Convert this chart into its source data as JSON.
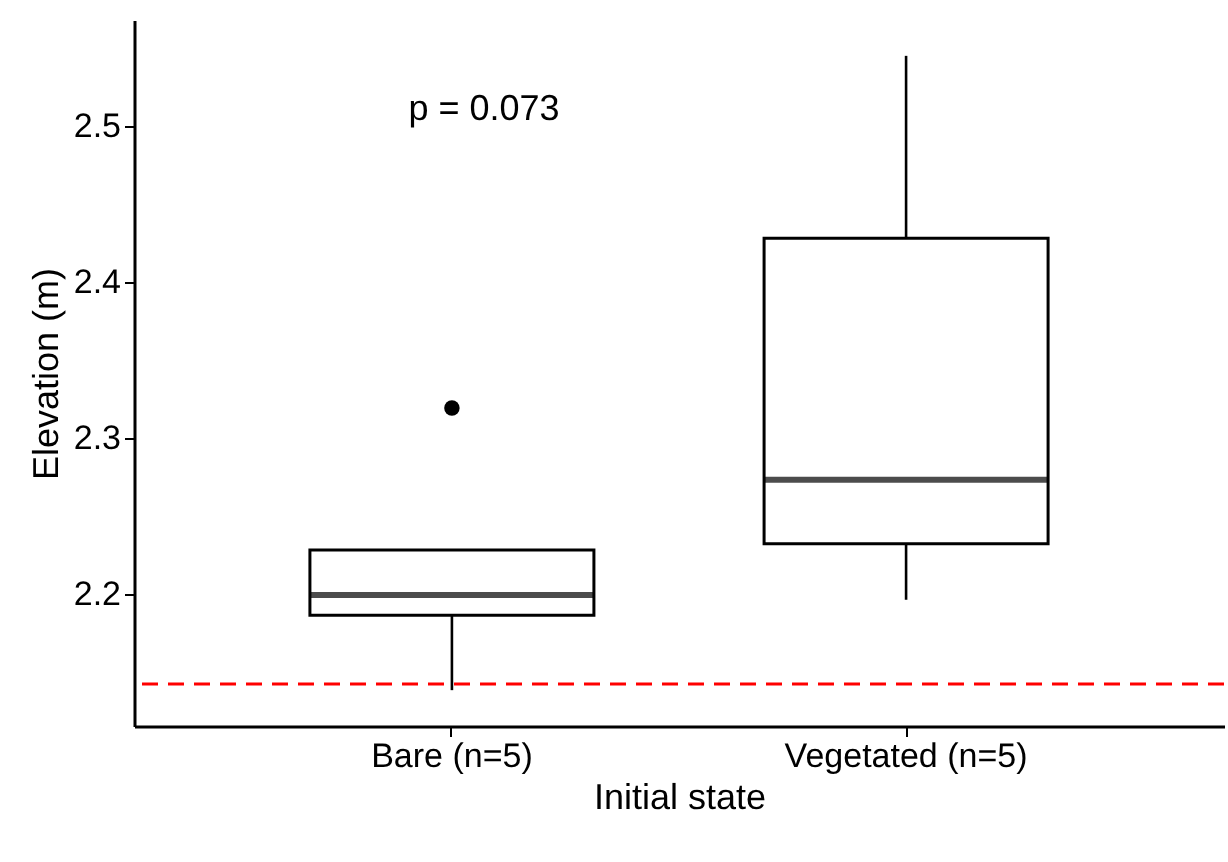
{
  "chart_data": {
    "type": "box",
    "xlabel": "Initial state",
    "ylabel": "Elevation (m)",
    "categories": [
      "Bare (n=5)",
      "Vegetated (n=5)"
    ],
    "boxes": [
      {
        "low": 2.138,
        "q1": 2.186,
        "median": 2.199,
        "q3": 2.228,
        "high": 2.228,
        "outliers": [
          2.319
        ]
      },
      {
        "low": 2.196,
        "q1": 2.232,
        "median": 2.273,
        "q3": 2.428,
        "high": 2.545
      }
    ],
    "ylim": [
      2.115,
      2.568
    ],
    "yticks": [
      2.2,
      2.3,
      2.4,
      2.5
    ],
    "ref_lines": [
      {
        "axis": "y",
        "value": 2.142,
        "color": "#ff0000",
        "line_style": "dashed"
      }
    ],
    "annotations": [
      "p = 0.073"
    ]
  }
}
